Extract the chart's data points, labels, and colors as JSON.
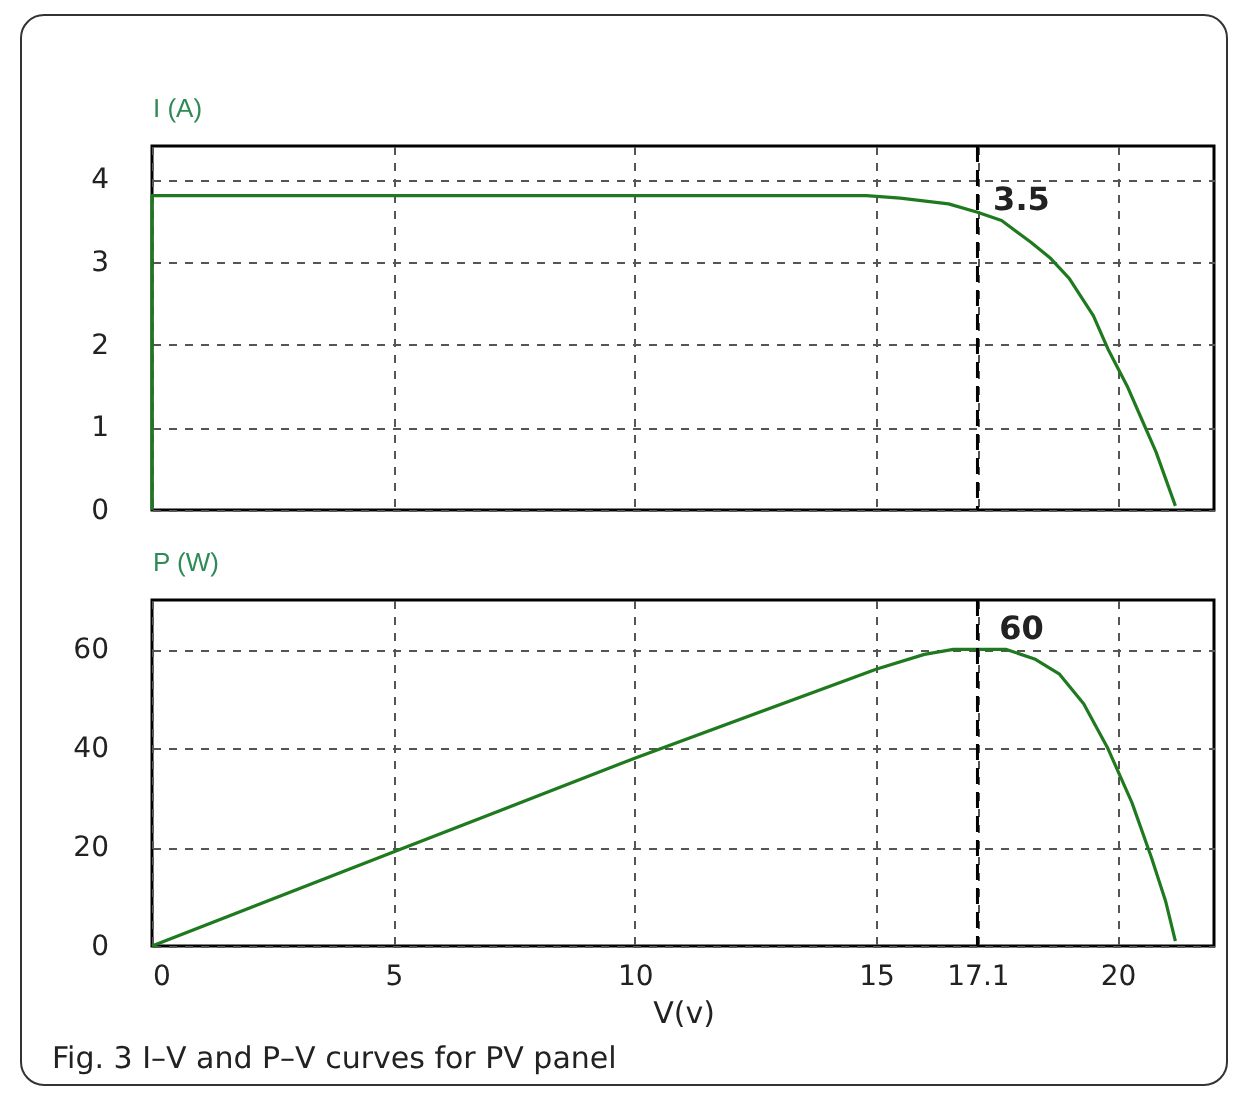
{
  "chart_data": [
    {
      "type": "line",
      "ylabel": "I (A)",
      "xlim": [
        0,
        22
      ],
      "xticks": [
        0,
        5,
        10,
        15,
        17.1,
        20
      ],
      "ylim": [
        0,
        4.4
      ],
      "yticks": [
        0,
        1,
        2,
        3,
        4
      ],
      "grid": true,
      "tick_labels": "y",
      "line_style": "solid",
      "x": [
        0,
        0,
        14.8,
        15.5,
        16.5,
        17.1,
        17.6,
        18.2,
        18.6,
        19,
        19.5,
        19.8,
        20.2,
        20.5,
        20.8,
        21.2
      ],
      "series": [
        {
          "color": "#1f7a1f",
          "values": [
            0,
            3.8,
            3.8,
            3.77,
            3.7,
            3.6,
            3.5,
            3.24,
            3.05,
            2.8,
            2.35,
            1.95,
            1.5,
            1.1,
            0.7,
            0.05
          ]
        }
      ],
      "ref_lines": [
        {
          "axis": "x",
          "value": 17.1,
          "color": "#000000",
          "line_style": "dashed"
        }
      ],
      "annotations": [
        {
          "text": "3.5",
          "x": 17.1,
          "y": 3.5
        }
      ]
    },
    {
      "type": "line",
      "ylabel": "P (W)",
      "xlabel": "V(v)",
      "xlim": [
        0,
        22
      ],
      "xticks": [
        0,
        5,
        10,
        15,
        {
          "value": 17.1,
          "label": "17.1"
        },
        20
      ],
      "ylim": [
        0,
        70
      ],
      "yticks": [
        0,
        20,
        40,
        60
      ],
      "grid": true,
      "line_style": "solid",
      "x": [
        0,
        5,
        10,
        15,
        16,
        16.6,
        17.1,
        17.7,
        18.3,
        18.8,
        19.3,
        19.8,
        20.3,
        20.7,
        21,
        21.2
      ],
      "series": [
        {
          "color": "#1f7a1f",
          "values": [
            0,
            19,
            38,
            56,
            59,
            60,
            60,
            60,
            58,
            55,
            49,
            40,
            29,
            18,
            9,
            1
          ]
        }
      ],
      "ref_lines": [
        {
          "axis": "x",
          "value": 17.1,
          "color": "#000000",
          "line_style": "dashed"
        }
      ],
      "annotations": [
        {
          "text": "60",
          "x": 17.1,
          "y": 60
        },
        "Fig. 3  I–V and P–V curves for PV panel"
      ]
    }
  ]
}
